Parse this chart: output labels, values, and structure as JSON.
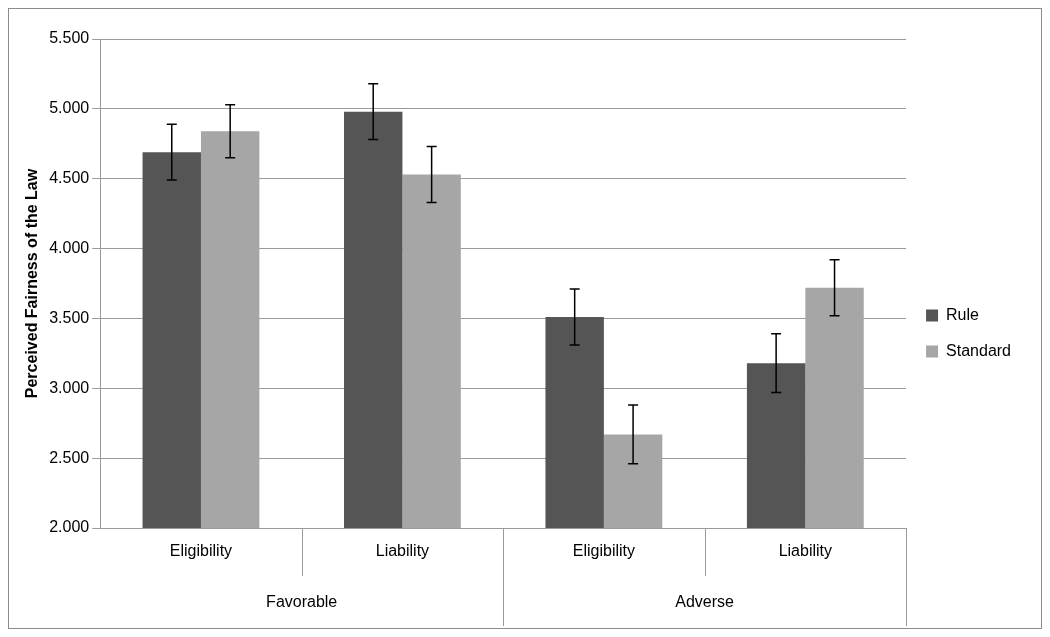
{
  "chart_data": {
    "type": "bar",
    "ylabel": "Perceived Fairness of the Law",
    "categories": [
      "Eligibility",
      "Liability",
      "Eligibility",
      "Liability"
    ],
    "annotations": [
      "Favorable",
      "Adverse"
    ],
    "series": [
      {
        "name": "Rule",
        "color": "#555555",
        "values": [
          4.69,
          4.98,
          3.51,
          3.18
        ],
        "errors": [
          0.2,
          0.2,
          0.2,
          0.21
        ]
      },
      {
        "name": "Standard",
        "color": "#a6a6a6",
        "values": [
          4.84,
          4.53,
          2.67,
          3.72
        ],
        "errors": [
          0.19,
          0.2,
          0.21,
          0.2
        ]
      }
    ],
    "ylim": [
      2,
      5.5
    ],
    "yticks": [
      {
        "value": 2,
        "label": "2.000"
      },
      {
        "value": 2.5,
        "label": "2.500"
      },
      {
        "value": 3,
        "label": "3.000"
      },
      {
        "value": 3.5,
        "label": "3.500"
      },
      {
        "value": 4,
        "label": "4.000"
      },
      {
        "value": 4.5,
        "label": "4.500"
      },
      {
        "value": 5,
        "label": "5.000"
      },
      {
        "value": 5.5,
        "label": "5.500"
      }
    ],
    "grid": "y",
    "legend": "right"
  }
}
